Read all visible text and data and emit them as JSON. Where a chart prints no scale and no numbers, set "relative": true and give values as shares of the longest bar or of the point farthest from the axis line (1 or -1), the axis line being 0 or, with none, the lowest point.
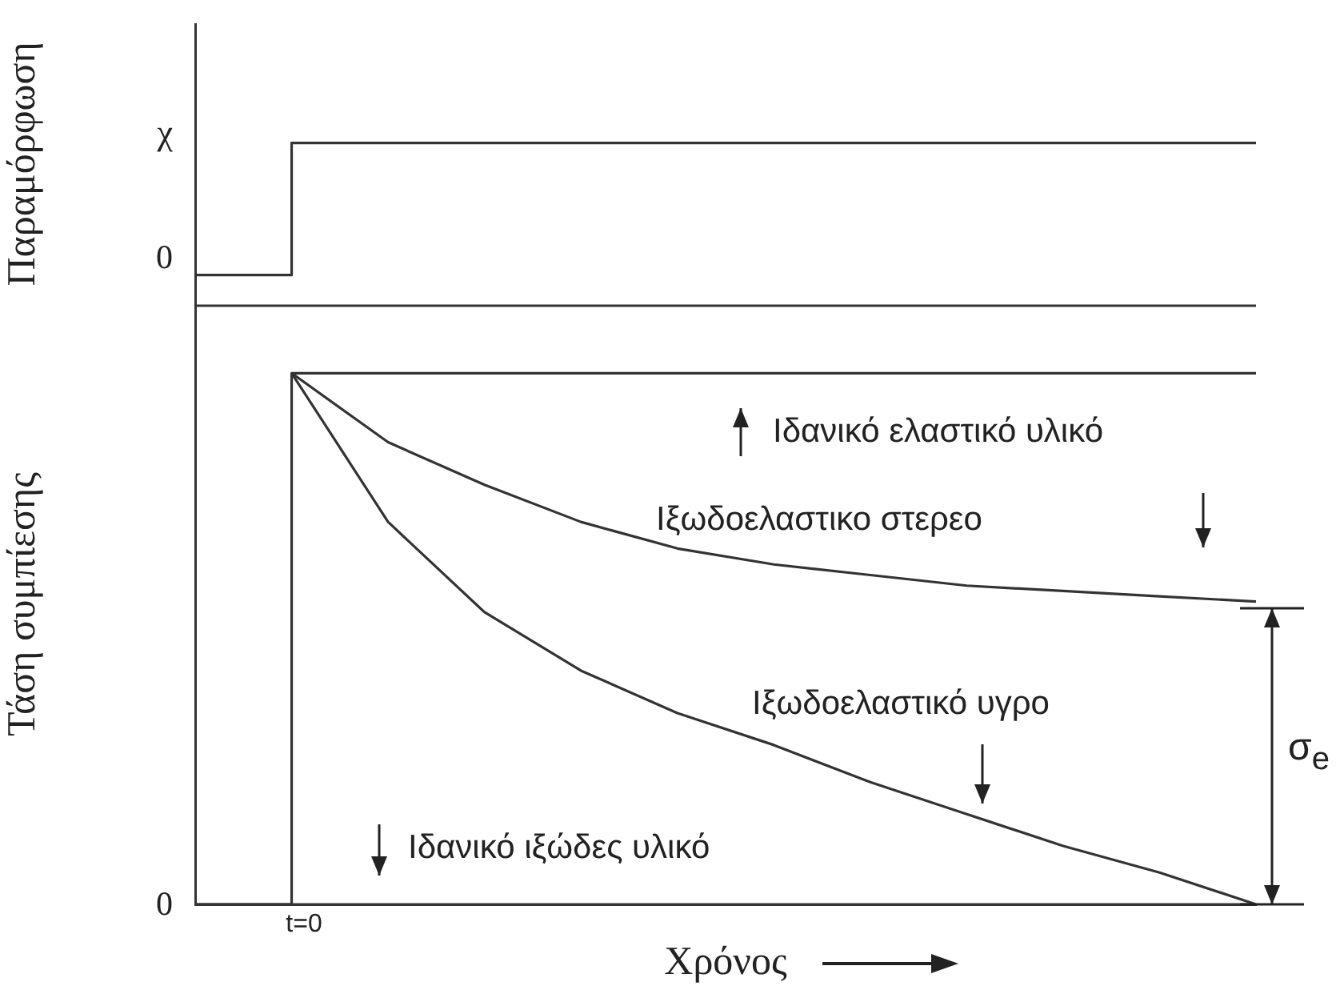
{
  "chart_data": [
    {
      "type": "step",
      "relative": true,
      "ylabel": "Παραμόρφωση",
      "categories": [
        null,
        null,
        null,
        null,
        null,
        null,
        null,
        null,
        null,
        null,
        null,
        null
      ],
      "grid": false,
      "legend": false,
      "marker": "none",
      "series": [
        {
          "color": "#333333",
          "values": [
            0,
            1,
            1,
            1,
            1,
            1,
            1,
            1,
            1,
            1,
            1,
            1
          ]
        }
      ],
      "annotations": [
        "0",
        "χ"
      ]
    },
    {
      "type": "line",
      "relative": true,
      "ylabel": "Τάση συμπίεσης",
      "xlabel": "Χρόνος",
      "categories": [
        null,
        null,
        null,
        null,
        null,
        null,
        null,
        null,
        null,
        null,
        null,
        null
      ],
      "grid": false,
      "legend": false,
      "marker": "none",
      "series": [
        {
          "type": "step",
          "color": "#333333",
          "values": [
            0,
            1,
            1,
            1,
            1,
            1,
            1,
            1,
            1,
            1,
            1,
            1
          ]
        },
        {
          "color": "#333333",
          "values": [
            null,
            1,
            0.87,
            0.79,
            0.72,
            0.67,
            0.64,
            0.62,
            0.6,
            0.59,
            0.58,
            0.57
          ]
        },
        {
          "color": "#333333",
          "values": [
            null,
            1,
            0.72,
            0.55,
            0.44,
            0.36,
            0.3,
            0.23,
            0.17,
            0.11,
            0.06,
            0
          ]
        },
        {
          "color": "#333333",
          "values": [
            0,
            0,
            0,
            0,
            0,
            0,
            0,
            0,
            0,
            0,
            0,
            0
          ]
        }
      ],
      "annotations": [
        "0",
        "t=0",
        "Ιδανικό ελαστικό υλικό",
        "Ιξωδοελαστικο στερεο",
        "Ιξωδοελαστικό υγρο",
        "Ιδανικό ιξώδες υλικό",
        "σ$_{e}$"
      ]
    }
  ]
}
